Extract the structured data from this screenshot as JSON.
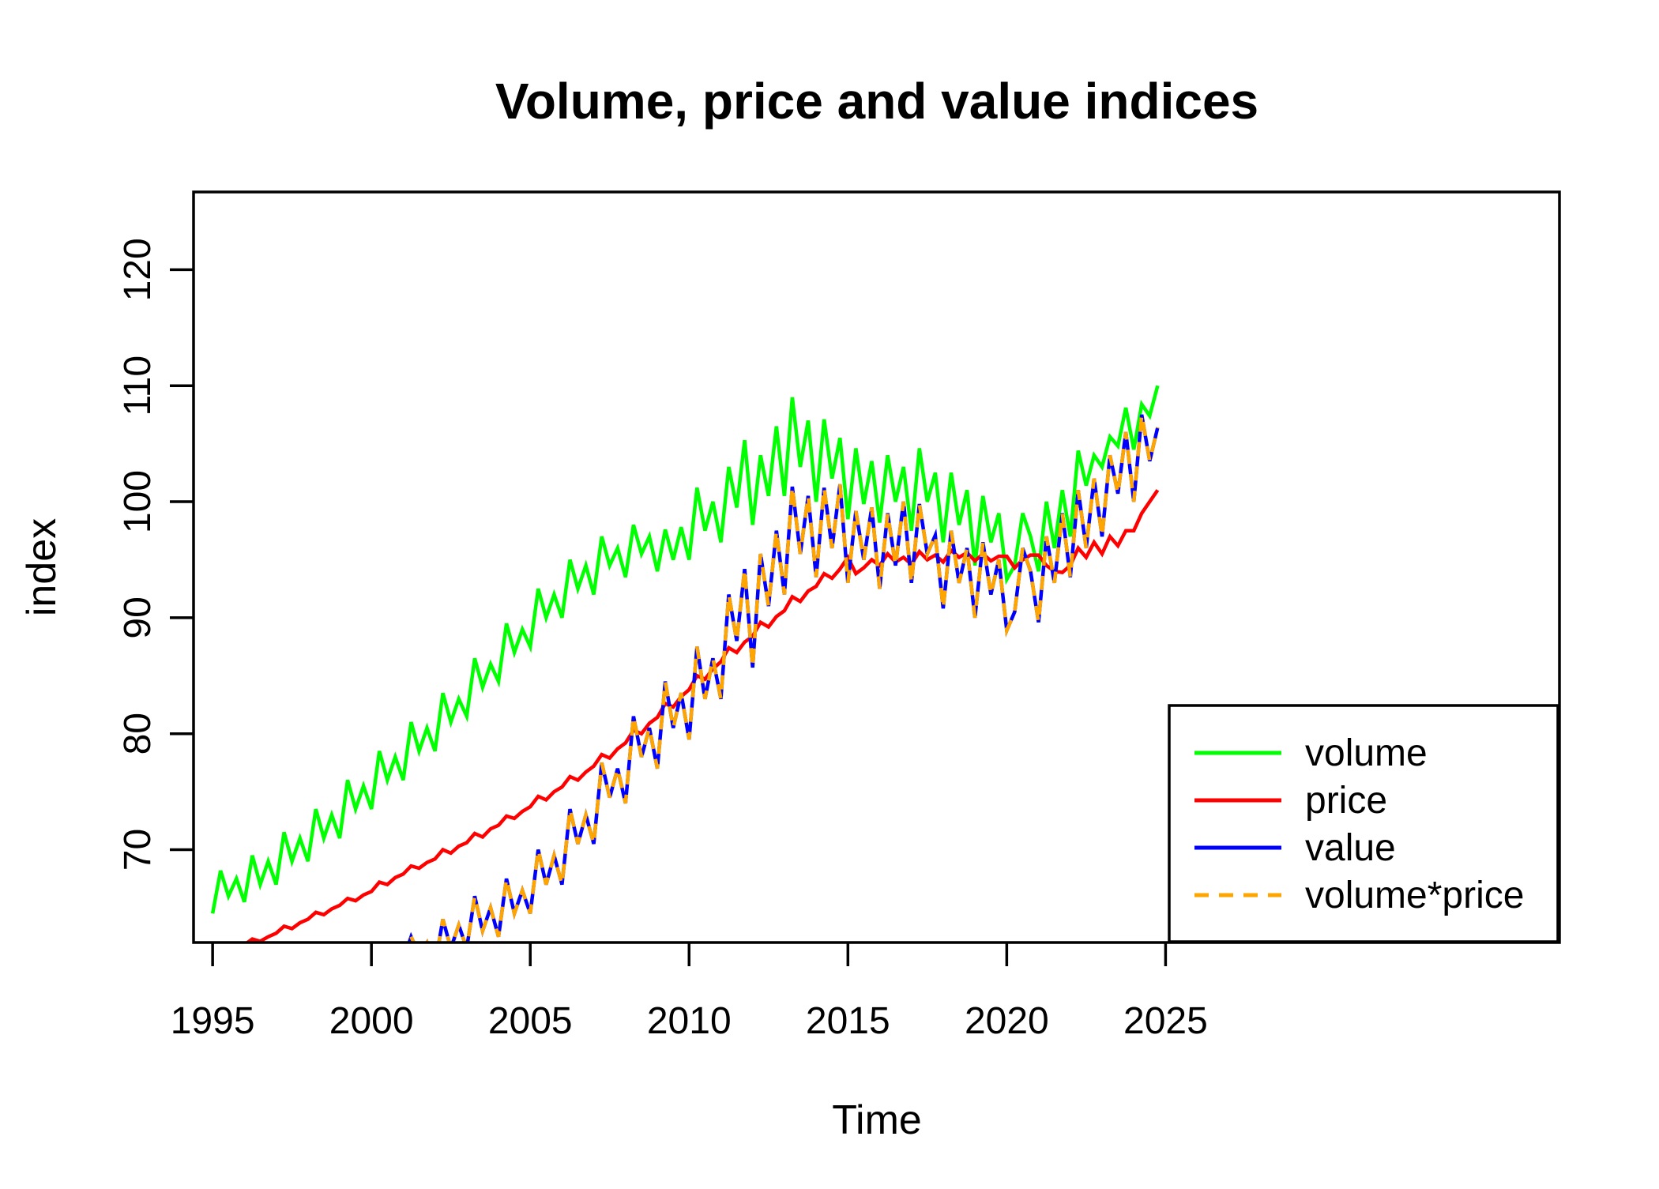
{
  "title": "Volume, price and value indices",
  "chart_data": {
    "type": "line",
    "title": "Volume, price and value indices",
    "xlabel": "Time",
    "ylabel": "index",
    "x_ticks": [
      1995,
      2000,
      2005,
      2010,
      2015,
      2020,
      2025
    ],
    "y_ticks": [
      70,
      80,
      90,
      100,
      110,
      120
    ],
    "x_range": [
      1994.4,
      2037.4
    ],
    "y_range": [
      62.0,
      126.7
    ],
    "grid": false,
    "legend_position": "bottom-right",
    "series": [
      {
        "name": "volume",
        "color": "#00ff00",
        "dash": null,
        "start": 1995.0,
        "step": 0.25,
        "values": [
          64.5,
          68.2,
          66.0,
          67.5,
          65.5,
          69.5,
          67.0,
          69.0,
          67.0,
          71.5,
          69.0,
          71.0,
          69.0,
          73.5,
          71.0,
          73.0,
          71.0,
          76.0,
          73.5,
          75.5,
          73.5,
          78.5,
          76.0,
          78.0,
          76.0,
          81.0,
          78.5,
          80.5,
          78.5,
          83.5,
          81.0,
          83.0,
          81.5,
          86.5,
          84.0,
          86.0,
          84.5,
          89.5,
          87.0,
          89.0,
          87.5,
          92.5,
          90.0,
          92.0,
          90.0,
          95.0,
          92.5,
          94.5,
          92.0,
          97.0,
          94.5,
          96.0,
          93.5,
          98.0,
          95.5,
          97.0,
          94.0,
          97.6,
          95.0,
          97.8,
          95.0,
          101.2,
          97.5,
          100.0,
          96.5,
          103.0,
          99.5,
          105.3,
          98.0,
          104.0,
          100.5,
          106.5,
          100.5,
          109.0,
          103.0,
          107.0,
          100.0,
          107.1,
          102.0,
          105.5,
          98.5,
          104.6,
          99.8,
          103.5,
          98.2,
          104.0,
          100.0,
          103.0,
          97.5,
          104.6,
          100.0,
          102.5,
          96.5,
          102.5,
          98.0,
          101.0,
          94.5,
          100.5,
          96.5,
          99.0,
          93.3,
          94.5,
          99.0,
          97.0,
          94.0,
          100.0,
          96.0,
          101.0,
          97.0,
          104.4,
          101.4,
          104.0,
          103.0,
          105.6,
          104.8,
          108.1,
          104.5,
          108.4,
          107.4,
          110.0
        ]
      },
      {
        "name": "price",
        "color": "#ff0000",
        "dash": null,
        "start": 1995.0,
        "step": 0.25,
        "values": [
          61.0,
          61.5,
          61.3,
          61.6,
          61.8,
          62.3,
          62.1,
          62.5,
          62.8,
          63.4,
          63.2,
          63.7,
          64.0,
          64.6,
          64.4,
          64.9,
          65.2,
          65.8,
          65.6,
          66.1,
          66.4,
          67.2,
          67.0,
          67.6,
          67.9,
          68.6,
          68.4,
          68.9,
          69.2,
          70.0,
          69.7,
          70.3,
          70.6,
          71.4,
          71.1,
          71.8,
          72.1,
          72.9,
          72.7,
          73.3,
          73.7,
          74.6,
          74.3,
          75.0,
          75.4,
          76.3,
          76.0,
          76.7,
          77.2,
          78.2,
          77.9,
          78.7,
          79.2,
          80.3,
          80.0,
          80.9,
          81.4,
          82.6,
          82.3,
          83.2,
          83.8,
          85.0,
          84.7,
          85.6,
          86.2,
          87.4,
          87.0,
          87.9,
          88.4,
          89.6,
          89.2,
          90.1,
          90.6,
          91.8,
          91.4,
          92.3,
          92.7,
          93.8,
          93.4,
          94.2,
          95.2,
          93.8,
          94.3,
          95.0,
          94.5,
          95.5,
          94.8,
          95.2,
          94.6,
          95.7,
          95.0,
          95.4,
          94.8,
          95.8,
          95.2,
          95.6,
          94.9,
          95.5,
          94.9,
          95.3,
          95.3,
          94.3,
          95.0,
          95.4,
          95.4,
          94.5,
          94.0,
          93.9,
          94.5,
          96.0,
          95.2,
          96.5,
          95.5,
          97.0,
          96.2,
          97.5,
          97.5,
          99.0,
          100.0,
          101.0
        ]
      },
      {
        "name": "value",
        "color": "#0000ff",
        "dash": null,
        "start": 2001.0,
        "step": 0.25,
        "values": [
          60.5,
          62.5,
          61.0,
          62.0,
          60.0,
          64.0,
          61.5,
          63.5,
          61.5,
          66.0,
          63.0,
          65.0,
          62.5,
          67.5,
          64.5,
          66.5,
          64.5,
          70.0,
          67.0,
          69.5,
          67.0,
          73.5,
          70.5,
          73.0,
          70.5,
          77.5,
          74.5,
          77.0,
          74.0,
          81.5,
          78.0,
          80.5,
          77.0,
          84.5,
          80.5,
          83.5,
          79.5,
          87.5,
          83.0,
          86.5,
          83.0,
          92.0,
          88.0,
          94.2,
          85.7,
          95.5,
          91.0,
          97.5,
          92.0,
          101.3,
          95.5,
          100.5,
          93.5,
          101.2,
          96.0,
          101.5,
          93.0,
          99.2,
          95.0,
          99.5,
          92.5,
          99.0,
          94.5,
          100.0,
          93.0,
          99.8,
          95.5,
          97.1,
          90.8,
          97.5,
          93.0,
          96.0,
          90.0,
          96.5,
          92.0,
          95.0,
          88.9,
          90.5,
          96.0,
          94.0,
          89.6,
          97.0,
          93.0,
          99.0,
          93.5,
          101.0,
          96.0,
          102.0,
          97.0,
          104.0,
          100.7,
          106.0,
          100.0,
          107.5,
          103.5,
          106.4
        ]
      },
      {
        "name": "volume*price",
        "color": "#ffa500",
        "dash": [
          18,
          13
        ],
        "start": 2001.0,
        "step": 0.25,
        "values": [
          60.5,
          62.5,
          61.0,
          62.0,
          60.0,
          64.0,
          61.5,
          63.5,
          61.5,
          66.0,
          63.0,
          65.0,
          62.5,
          67.5,
          64.5,
          66.5,
          64.5,
          70.0,
          67.0,
          69.5,
          67.0,
          73.5,
          70.5,
          73.0,
          70.5,
          77.5,
          74.5,
          77.0,
          74.0,
          81.5,
          78.0,
          80.5,
          77.0,
          84.5,
          80.5,
          83.5,
          79.5,
          87.5,
          83.0,
          86.5,
          83.0,
          92.0,
          88.0,
          94.2,
          85.7,
          95.5,
          91.0,
          97.5,
          92.0,
          101.3,
          95.5,
          100.5,
          93.5,
          101.2,
          96.0,
          101.5,
          93.0,
          99.2,
          95.0,
          99.5,
          92.5,
          99.0,
          94.5,
          100.0,
          93.0,
          99.8,
          95.5,
          97.1,
          90.8,
          97.5,
          93.0,
          96.0,
          90.0,
          96.5,
          92.0,
          95.0,
          88.9,
          90.5,
          96.0,
          94.0,
          89.6,
          97.0,
          93.0,
          99.0,
          93.5,
          101.0,
          96.0,
          102.0,
          97.0,
          104.0,
          100.7,
          106.0,
          100.0,
          107.5,
          103.5,
          106.4
        ]
      }
    ],
    "legend_entries": [
      "volume",
      "price",
      "value",
      "volume*price"
    ]
  }
}
